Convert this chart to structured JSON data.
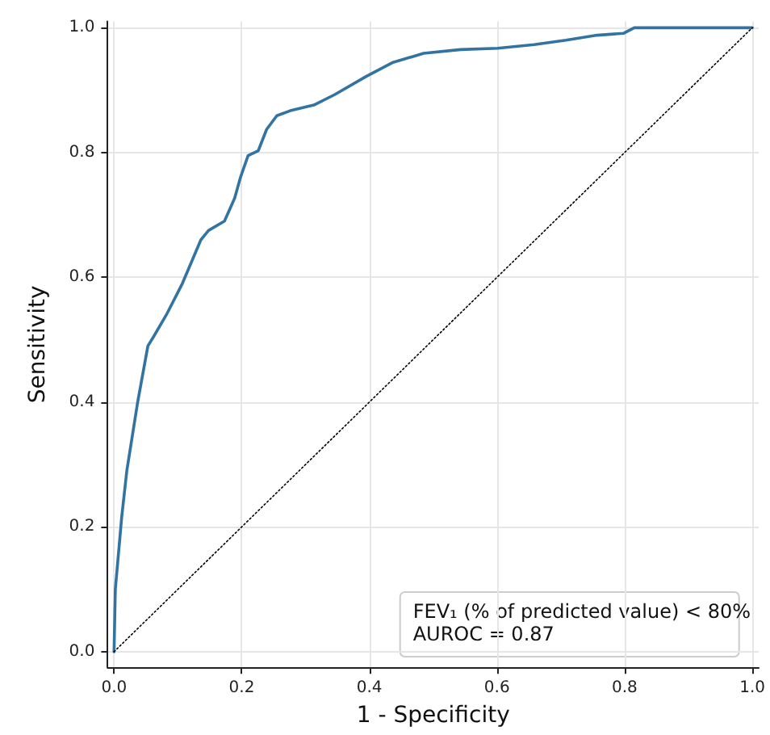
{
  "chart_data": {
    "type": "line",
    "xlabel": "1 - Specificity",
    "ylabel": "Sensitivity",
    "annotations": [
      "FEV₁ (% of predicted value) < 80%",
      "AUROC = 0.87"
    ],
    "xlim": [
      -0.01,
      1.01
    ],
    "ylim": [
      -0.025,
      1.01
    ],
    "xticks": [
      {
        "value": 0,
        "label": "0.0"
      },
      {
        "value": 0.2,
        "label": "0.2"
      },
      {
        "value": 0.4,
        "label": "0.4"
      },
      {
        "value": 0.6,
        "label": "0.6"
      },
      {
        "value": 0.8,
        "label": "0.8"
      },
      {
        "value": 1,
        "label": "1.0"
      }
    ],
    "yticks": [
      {
        "value": 0,
        "label": "0.0"
      },
      {
        "value": 0.2,
        "label": "0.2"
      },
      {
        "value": 0.4,
        "label": "0.4"
      },
      {
        "value": 0.6,
        "label": "0.6"
      },
      {
        "value": 0.8,
        "label": "0.8"
      },
      {
        "value": 1,
        "label": "1.0"
      }
    ],
    "grid": true,
    "marker": "none",
    "series": [
      {
        "color": "#3274a1",
        "line_style": "solid",
        "x": [
          0,
          0.002,
          0.012,
          0.02,
          0.037,
          0.053,
          0.062,
          0.082,
          0.107,
          0.136,
          0.148,
          0.173,
          0.189,
          0.198,
          0.21,
          0.226,
          0.239,
          0.255,
          0.276,
          0.313,
          0.346,
          0.395,
          0.436,
          0.485,
          0.543,
          0.601,
          0.658,
          0.708,
          0.757,
          0.798,
          0.815,
          1
        ],
        "values": [
          0,
          0.1,
          0.216,
          0.29,
          0.4,
          0.49,
          0.505,
          0.54,
          0.59,
          0.66,
          0.675,
          0.69,
          0.727,
          0.76,
          0.795,
          0.803,
          0.837,
          0.859,
          0.867,
          0.876,
          0.893,
          0.922,
          0.944,
          0.959,
          0.965,
          0.967,
          0.973,
          0.98,
          0.988,
          0.991,
          1,
          1
        ]
      },
      {
        "color": "#000000",
        "line_style": "dotted",
        "x": [
          0,
          1
        ],
        "values": [
          0,
          1
        ]
      }
    ]
  }
}
